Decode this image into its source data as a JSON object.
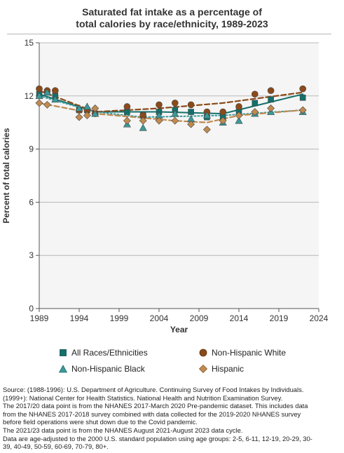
{
  "chart_data": {
    "type": "line",
    "title_lines": [
      "Saturated fat intake as a percentage of",
      "total calories by race/ethnicity, 1989-2023"
    ],
    "xlabel": "Year",
    "ylabel": "Percent of total calories",
    "xlim": [
      1989,
      2024
    ],
    "ylim": [
      0,
      15
    ],
    "xticks": [
      1989,
      1994,
      1999,
      2004,
      2009,
      2014,
      2019,
      2024
    ],
    "yticks": [
      0,
      3,
      6,
      9,
      12,
      15
    ],
    "grid": "horizontal",
    "legend_position": "bottom",
    "series": [
      {
        "name": "All Races/Ethnicities",
        "color": "#13706b",
        "marker": "square",
        "line_style": "solid",
        "points": [
          [
            1989,
            12.1
          ],
          [
            1990,
            12.2
          ],
          [
            1991,
            12.0
          ],
          [
            1994,
            11.2
          ],
          [
            1995,
            11.2
          ],
          [
            1996,
            11.0
          ],
          [
            2000,
            11.1
          ],
          [
            2002,
            10.9
          ],
          [
            2004,
            11.1
          ],
          [
            2006,
            11.2
          ],
          [
            2008,
            11.1
          ],
          [
            2010,
            10.8
          ],
          [
            2012,
            10.8
          ],
          [
            2014,
            11.1
          ],
          [
            2016,
            11.6
          ],
          [
            2018,
            11.8
          ],
          [
            2022,
            11.9
          ]
        ],
        "trend": [
          [
            1989,
            12.1
          ],
          [
            1996,
            11.1
          ],
          [
            2004,
            11.1
          ],
          [
            2012,
            11.0
          ],
          [
            2022,
            12.1
          ]
        ]
      },
      {
        "name": "Non-Hispanic White",
        "color": "#8b4a1a",
        "marker": "circle",
        "line_style": "dashed",
        "points": [
          [
            1989,
            12.4
          ],
          [
            1990,
            12.3
          ],
          [
            1991,
            12.3
          ],
          [
            1994,
            11.2
          ],
          [
            1995,
            11.2
          ],
          [
            1996,
            11.0
          ],
          [
            2000,
            11.4
          ],
          [
            2002,
            10.9
          ],
          [
            2004,
            11.5
          ],
          [
            2006,
            11.6
          ],
          [
            2008,
            11.5
          ],
          [
            2010,
            11.1
          ],
          [
            2012,
            11.1
          ],
          [
            2014,
            11.4
          ],
          [
            2016,
            12.1
          ],
          [
            2018,
            12.3
          ],
          [
            2022,
            12.4
          ]
        ],
        "trend": [
          [
            1989,
            12.3
          ],
          [
            1996,
            11.1
          ],
          [
            2004,
            11.3
          ],
          [
            2012,
            11.6
          ],
          [
            2022,
            12.2
          ]
        ]
      },
      {
        "name": "Non-Hispanic Black",
        "color": "#3a9a9a",
        "marker": "triangle",
        "line_style": "dotted",
        "points": [
          [
            1989,
            12.0
          ],
          [
            1990,
            12.2
          ],
          [
            1991,
            11.8
          ],
          [
            1994,
            11.3
          ],
          [
            1995,
            11.4
          ],
          [
            1996,
            11.0
          ],
          [
            2000,
            10.4
          ],
          [
            2002,
            10.2
          ],
          [
            2004,
            10.9
          ],
          [
            2006,
            11.0
          ],
          [
            2008,
            10.7
          ],
          [
            2010,
            10.9
          ],
          [
            2012,
            10.5
          ],
          [
            2014,
            10.6
          ],
          [
            2016,
            11.0
          ],
          [
            2018,
            11.1
          ],
          [
            2022,
            11.1
          ]
        ],
        "trend": [
          [
            1989,
            12.0
          ],
          [
            1996,
            11.1
          ],
          [
            2002,
            10.8
          ],
          [
            2012,
            10.9
          ],
          [
            2022,
            11.2
          ]
        ]
      },
      {
        "name": "Hispanic",
        "color": "#c08a50",
        "marker": "diamond",
        "line_style": "dashed",
        "points": [
          [
            1989,
            11.6
          ],
          [
            1990,
            11.5
          ],
          [
            1994,
            10.8
          ],
          [
            1995,
            10.9
          ],
          [
            1996,
            11.3
          ],
          [
            2000,
            10.6
          ],
          [
            2002,
            10.6
          ],
          [
            2004,
            10.6
          ],
          [
            2006,
            10.6
          ],
          [
            2008,
            10.4
          ],
          [
            2010,
            10.1
          ],
          [
            2012,
            10.6
          ],
          [
            2014,
            10.9
          ],
          [
            2016,
            11.1
          ],
          [
            2018,
            11.3
          ],
          [
            2022,
            11.2
          ]
        ],
        "trend": [
          [
            1989,
            11.6
          ],
          [
            1996,
            11.0
          ],
          [
            2006,
            10.6
          ],
          [
            2010,
            10.5
          ],
          [
            2014,
            10.9
          ],
          [
            2022,
            11.2
          ]
        ]
      }
    ]
  },
  "legend": {
    "items": [
      {
        "label": "All Races/Ethnicities",
        "marker": "square",
        "color": "#13706b"
      },
      {
        "label": "Non-Hispanic White",
        "marker": "circle",
        "color": "#8b4a1a"
      },
      {
        "label": "Non-Hispanic Black",
        "marker": "triangle",
        "color": "#3a9a9a"
      },
      {
        "label": "Hispanic",
        "marker": "diamond",
        "color": "#c08a50"
      }
    ]
  },
  "source_lines": [
    "Source: (1988-1996): U.S. Department of Agriculture. Continuing Survey of Food Intakes by Individuals.",
    "(1999+): National Center for Health Statistics. National Health and Nutrition Examination Survey.",
    "The 2017/20 data point is from the NHANES 2017-March 2020 Pre-pandemic dataset. This includes data",
    "from the NHANES 2017-2018 survey combined with data collected for the 2019-2020 NHANES survey",
    "before field operations were shut down due to the Covid pandemic.",
    "The 2021/23 data point is from the NHANES August 2021-August 2023 data cycle.",
    "Data are age-adjusted to the 2000 U.S. standard population using age groups: 2-5, 6-11, 12-19, 20-29, 30-",
    "39, 40-49, 50-59, 60-69, 70-79, 80+."
  ]
}
